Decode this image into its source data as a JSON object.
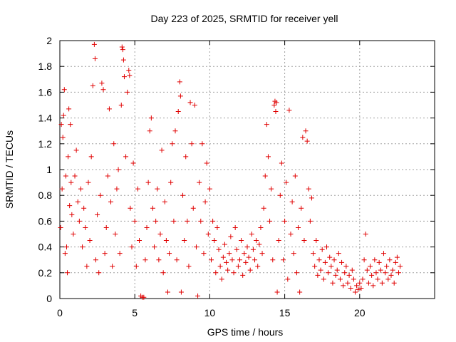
{
  "chart_data": {
    "type": "scatter",
    "title": "Day 223 of 2025, SRMTID for receiver yell",
    "xlabel": "GPS time / hours",
    "ylabel": "SRMTID / TECUs",
    "xlim": [
      0,
      25
    ],
    "ylim": [
      0,
      2
    ],
    "xticks": [
      0,
      5,
      10,
      15,
      20
    ],
    "xtick_labels": [
      "0",
      "5",
      "10",
      "15",
      "20"
    ],
    "yticks": [
      0,
      0.2,
      0.4,
      0.6,
      0.8,
      1,
      1.2,
      1.4,
      1.6,
      1.8,
      2
    ],
    "ytick_labels": [
      "0",
      "0.2",
      "0.4",
      "0.6",
      "0.8",
      "1",
      "1.2",
      "1.4",
      "1.6",
      "1.8",
      "2"
    ],
    "grid": true,
    "marker": "+",
    "color": "#e00000",
    "series": [
      {
        "name": "SRMTID",
        "points": [
          [
            0.05,
            0.55
          ],
          [
            0.1,
            1.35
          ],
          [
            0.15,
            0.85
          ],
          [
            0.2,
            1.25
          ],
          [
            0.25,
            1.42
          ],
          [
            0.3,
            1.62
          ],
          [
            0.35,
            0.35
          ],
          [
            0.4,
            0.95
          ],
          [
            0.45,
            0.4
          ],
          [
            0.5,
            0.2
          ],
          [
            0.55,
            1.1
          ],
          [
            0.6,
            1.47
          ],
          [
            0.65,
            0.72
          ],
          [
            0.7,
            1.35
          ],
          [
            0.75,
            0.9
          ],
          [
            0.8,
            0.65
          ],
          [
            0.9,
            0.5
          ],
          [
            1.0,
            0.95
          ],
          [
            1.1,
            1.15
          ],
          [
            1.2,
            0.75
          ],
          [
            1.3,
            0.6
          ],
          [
            1.4,
            0.85
          ],
          [
            1.5,
            0.4
          ],
          [
            1.6,
            0.7
          ],
          [
            1.7,
            0.55
          ],
          [
            1.8,
            0.25
          ],
          [
            1.9,
            0.9
          ],
          [
            2.0,
            0.45
          ],
          [
            2.1,
            1.1
          ],
          [
            2.2,
            1.65
          ],
          [
            2.3,
            1.97
          ],
          [
            2.35,
            1.86
          ],
          [
            2.4,
            0.3
          ],
          [
            2.5,
            0.65
          ],
          [
            2.6,
            0.2
          ],
          [
            2.7,
            0.8
          ],
          [
            2.8,
            1.67
          ],
          [
            2.9,
            1.62
          ],
          [
            3.0,
            0.35
          ],
          [
            3.1,
            0.55
          ],
          [
            3.2,
            0.95
          ],
          [
            3.3,
            1.47
          ],
          [
            3.4,
            0.75
          ],
          [
            3.5,
            0.25
          ],
          [
            3.6,
            1.2
          ],
          [
            3.7,
            0.5
          ],
          [
            3.8,
            0.85
          ],
          [
            3.9,
            1.0
          ],
          [
            4.0,
            0.35
          ],
          [
            4.1,
            1.5
          ],
          [
            4.15,
            1.95
          ],
          [
            4.2,
            1.93
          ],
          [
            4.25,
            1.85
          ],
          [
            4.3,
            1.72
          ],
          [
            4.4,
            1.1
          ],
          [
            4.5,
            1.6
          ],
          [
            4.6,
            1.77
          ],
          [
            4.65,
            1.73
          ],
          [
            4.7,
            0.7
          ],
          [
            4.8,
            0.4
          ],
          [
            4.9,
            1.05
          ],
          [
            5.0,
            0.6
          ],
          [
            5.1,
            0.25
          ],
          [
            5.2,
            0.85
          ],
          [
            5.3,
            0.45
          ],
          [
            5.4,
            0.02
          ],
          [
            5.5,
            0.01
          ],
          [
            5.6,
            0.01
          ],
          [
            5.7,
            0.3
          ],
          [
            5.8,
            0.55
          ],
          [
            5.9,
            0.9
          ],
          [
            6.0,
            1.3
          ],
          [
            6.1,
            1.4
          ],
          [
            6.2,
            0.7
          ],
          [
            6.3,
            0.4
          ],
          [
            6.4,
            0.6
          ],
          [
            6.5,
            0.85
          ],
          [
            6.6,
            0.3
          ],
          [
            6.7,
            0.5
          ],
          [
            6.8,
            1.15
          ],
          [
            6.9,
            0.2
          ],
          [
            7.0,
            0.75
          ],
          [
            7.1,
            0.45
          ],
          [
            7.2,
            0.05
          ],
          [
            7.3,
            0.35
          ],
          [
            7.4,
            0.9
          ],
          [
            7.5,
            1.2
          ],
          [
            7.6,
            0.6
          ],
          [
            7.7,
            1.3
          ],
          [
            7.8,
            0.3
          ],
          [
            7.9,
            1.45
          ],
          [
            8.0,
            1.68
          ],
          [
            8.05,
            1.57
          ],
          [
            8.1,
            0.05
          ],
          [
            8.2,
            0.8
          ],
          [
            8.3,
            0.45
          ],
          [
            8.4,
            1.1
          ],
          [
            8.5,
            0.6
          ],
          [
            8.6,
            0.25
          ],
          [
            8.7,
            1.52
          ],
          [
            8.8,
            1.2
          ],
          [
            8.9,
            0.7
          ],
          [
            9.0,
            1.5
          ],
          [
            9.1,
            0.4
          ],
          [
            9.2,
            0.02
          ],
          [
            9.3,
            0.9
          ],
          [
            9.4,
            0.6
          ],
          [
            9.5,
            1.2
          ],
          [
            9.6,
            0.35
          ],
          [
            9.7,
            0.75
          ],
          [
            9.8,
            1.05
          ],
          [
            9.9,
            0.5
          ],
          [
            10.0,
            0.85
          ],
          [
            10.1,
            0.3
          ],
          [
            10.2,
            0.6
          ],
          [
            10.3,
            0.45
          ],
          [
            10.4,
            0.2
          ],
          [
            10.5,
            0.55
          ],
          [
            10.6,
            0.38
          ],
          [
            10.7,
            0.25
          ],
          [
            10.8,
            0.15
          ],
          [
            10.9,
            0.32
          ],
          [
            11.0,
            0.42
          ],
          [
            11.1,
            0.28
          ],
          [
            11.2,
            0.22
          ],
          [
            11.3,
            0.35
          ],
          [
            11.4,
            0.48
          ],
          [
            11.5,
            0.3
          ],
          [
            11.6,
            0.2
          ],
          [
            11.7,
            0.55
          ],
          [
            11.8,
            0.38
          ],
          [
            11.9,
            0.25
          ],
          [
            12.0,
            0.3
          ],
          [
            12.1,
            0.45
          ],
          [
            12.2,
            0.18
          ],
          [
            12.3,
            0.35
          ],
          [
            12.4,
            0.28
          ],
          [
            12.5,
            0.4
          ],
          [
            12.6,
            0.32
          ],
          [
            12.7,
            0.22
          ],
          [
            12.8,
            0.5
          ],
          [
            12.9,
            0.38
          ],
          [
            13.0,
            0.3
          ],
          [
            13.1,
            0.45
          ],
          [
            13.2,
            0.25
          ],
          [
            13.3,
            0.42
          ],
          [
            13.4,
            0.55
          ],
          [
            13.5,
            0.35
          ],
          [
            13.6,
            0.7
          ],
          [
            13.7,
            0.95
          ],
          [
            13.8,
            1.35
          ],
          [
            13.9,
            1.1
          ],
          [
            14.0,
            0.6
          ],
          [
            14.1,
            0.85
          ],
          [
            14.2,
            0.3
          ],
          [
            14.3,
            1.5
          ],
          [
            14.35,
            1.53
          ],
          [
            14.4,
            1.45
          ],
          [
            14.45,
            1.52
          ],
          [
            14.5,
            0.05
          ],
          [
            14.6,
            0.45
          ],
          [
            14.7,
            0.8
          ],
          [
            14.8,
            1.05
          ],
          [
            14.9,
            0.3
          ],
          [
            15.0,
            0.6
          ],
          [
            15.1,
            0.9
          ],
          [
            15.2,
            0.15
          ],
          [
            15.3,
            1.46
          ],
          [
            15.4,
            0.5
          ],
          [
            15.5,
            0.75
          ],
          [
            15.6,
            0.35
          ],
          [
            15.7,
            0.95
          ],
          [
            15.8,
            0.2
          ],
          [
            15.9,
            0.55
          ],
          [
            16.0,
            0.05
          ],
          [
            16.1,
            0.7
          ],
          [
            16.2,
            1.25
          ],
          [
            16.3,
            0.45
          ],
          [
            16.4,
            1.3
          ],
          [
            16.5,
            1.22
          ],
          [
            16.6,
            0.85
          ],
          [
            16.7,
            0.6
          ],
          [
            16.8,
            0.78
          ],
          [
            16.9,
            0.35
          ],
          [
            17.0,
            0.25
          ],
          [
            17.1,
            0.45
          ],
          [
            17.2,
            0.18
          ],
          [
            17.3,
            0.3
          ],
          [
            17.4,
            0.22
          ],
          [
            17.5,
            0.38
          ],
          [
            17.6,
            0.15
          ],
          [
            17.7,
            0.28
          ],
          [
            17.8,
            0.4
          ],
          [
            17.9,
            0.2
          ],
          [
            18.0,
            0.32
          ],
          [
            18.1,
            0.25
          ],
          [
            18.2,
            0.12
          ],
          [
            18.3,
            0.3
          ],
          [
            18.4,
            0.18
          ],
          [
            18.5,
            0.22
          ],
          [
            18.6,
            0.35
          ],
          [
            18.7,
            0.15
          ],
          [
            18.8,
            0.28
          ],
          [
            18.9,
            0.1
          ],
          [
            19.0,
            0.2
          ],
          [
            19.1,
            0.25
          ],
          [
            19.2,
            0.12
          ],
          [
            19.3,
            0.18
          ],
          [
            19.4,
            0.08
          ],
          [
            19.5,
            0.22
          ],
          [
            19.6,
            0.15
          ],
          [
            19.7,
            0.05
          ],
          [
            19.8,
            0.1
          ],
          [
            19.9,
            0.07
          ],
          [
            20.0,
            0.12
          ],
          [
            20.1,
            0.08
          ],
          [
            20.2,
            0.15
          ],
          [
            20.3,
            0.3
          ],
          [
            20.4,
            0.5
          ],
          [
            20.5,
            0.22
          ],
          [
            20.6,
            0.12
          ],
          [
            20.7,
            0.25
          ],
          [
            20.8,
            0.18
          ],
          [
            20.9,
            0.1
          ],
          [
            21.0,
            0.3
          ],
          [
            21.1,
            0.2
          ],
          [
            21.2,
            0.15
          ],
          [
            21.3,
            0.28
          ],
          [
            21.4,
            0.22
          ],
          [
            21.5,
            0.12
          ],
          [
            21.6,
            0.35
          ],
          [
            21.7,
            0.2
          ],
          [
            21.8,
            0.25
          ],
          [
            21.9,
            0.15
          ],
          [
            22.0,
            0.3
          ],
          [
            22.1,
            0.18
          ],
          [
            22.2,
            0.22
          ],
          [
            22.3,
            0.12
          ],
          [
            22.4,
            0.28
          ],
          [
            22.5,
            0.32
          ],
          [
            22.6,
            0.2
          ],
          [
            22.7,
            0.25
          ]
        ]
      }
    ]
  }
}
